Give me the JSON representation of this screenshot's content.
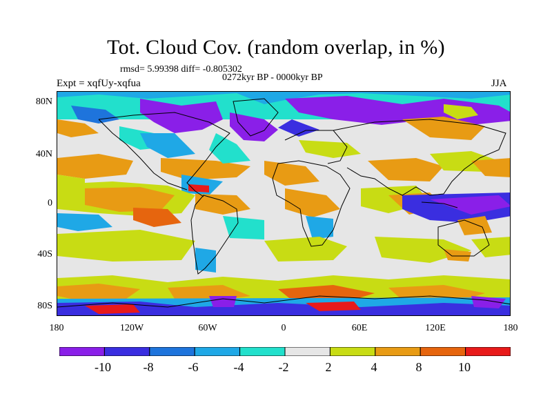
{
  "title": "Tot. Cloud Cov. (random overlap, in %)",
  "stats": "rmsd= 5.99398 diff= -0.805302",
  "period": "0272kyr BP - 0000kyr BP",
  "experiment": "Expt = xqfUy-xqfua",
  "season": "JJA",
  "map": {
    "lat_labels": [
      "80N",
      "40N",
      "0",
      "40S",
      "80S"
    ],
    "lon_labels": [
      "180",
      "120W",
      "60W",
      "0",
      "60E",
      "120E",
      "180"
    ]
  },
  "colorbar": {
    "labels": [
      "-10",
      "-8",
      "-6",
      "-4",
      "-2",
      "2",
      "4",
      "8",
      "10"
    ],
    "colors": [
      "#8a1fe8",
      "#3a2ee0",
      "#1e74dc",
      "#1fa8e6",
      "#22e0cc",
      "#e6e6e6",
      "#c8dc14",
      "#e89b14",
      "#e6650e",
      "#e81a1a"
    ]
  }
}
